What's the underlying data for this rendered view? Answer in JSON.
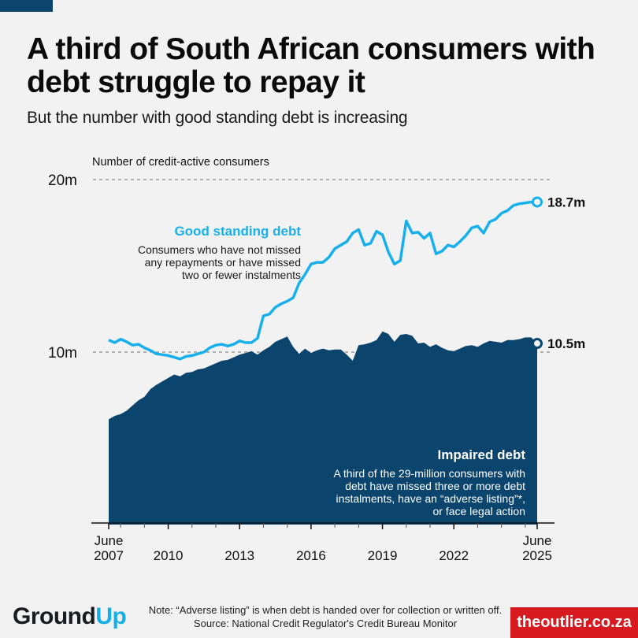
{
  "header": {
    "title": "A third of South African consumers with debt struggle to repay it",
    "subtitle": "But the number with good standing debt is increasing"
  },
  "footer": {
    "logo_part1": "Gr",
    "logo_part2": "ound",
    "logo_part3": "Up",
    "note": "Note: “Adverse listing” is when debt is handed over for collection or written off. Source: National Credit Regulator's Credit Bureau Monitor",
    "outlier_label": "theoutlier.co.za"
  },
  "colors": {
    "good_standing": "#17b0ec",
    "impaired": "#0b446d",
    "outlier_red": "#d71a1f",
    "gridline": "#8a8a8a"
  },
  "chart_data": {
    "type": "area",
    "ylabel": "Number of credit-active consumers",
    "ylim": [
      0,
      20
    ],
    "y_unit": "million",
    "yticks": [
      {
        "value": 10,
        "label": "10m"
      },
      {
        "value": 20,
        "label": "20m"
      }
    ],
    "grid": true,
    "xlim": [
      2007.5,
      2025.5
    ],
    "xticks": [
      {
        "value": 2007.5,
        "label_top": "June",
        "label": "2007"
      },
      {
        "value": 2010,
        "label_top": "",
        "label": "2010"
      },
      {
        "value": 2013,
        "label_top": "",
        "label": "2013"
      },
      {
        "value": 2016,
        "label_top": "",
        "label": "2016"
      },
      {
        "value": 2019,
        "label_top": "",
        "label": "2019"
      },
      {
        "value": 2022,
        "label_top": "",
        "label": "2022"
      },
      {
        "value": 2025.5,
        "label_top": "June",
        "label": "2025"
      }
    ],
    "minor_tick_years": [
      2008,
      2009,
      2011,
      2012,
      2014,
      2015,
      2017,
      2018,
      2020,
      2021,
      2023,
      2024,
      2025
    ],
    "x": [
      2007.5,
      2007.75,
      2008,
      2008.25,
      2008.5,
      2008.75,
      2009,
      2009.25,
      2009.5,
      2009.75,
      2010,
      2010.25,
      2010.5,
      2010.75,
      2011,
      2011.25,
      2011.5,
      2011.75,
      2012,
      2012.25,
      2012.5,
      2012.75,
      2013,
      2013.25,
      2013.5,
      2013.75,
      2014,
      2014.25,
      2014.5,
      2014.75,
      2015,
      2015.25,
      2015.5,
      2015.75,
      2016,
      2016.25,
      2016.5,
      2016.75,
      2017,
      2017.25,
      2017.5,
      2017.75,
      2018,
      2018.25,
      2018.5,
      2018.75,
      2019,
      2019.25,
      2019.5,
      2019.75,
      2020,
      2020.25,
      2020.5,
      2020.75,
      2021,
      2021.25,
      2021.5,
      2021.75,
      2022,
      2022.25,
      2022.5,
      2022.75,
      2023,
      2023.25,
      2023.5,
      2023.75,
      2024,
      2024.25,
      2024.5,
      2024.75,
      2025,
      2025.25,
      2025.5
    ],
    "series": [
      {
        "name": "Good standing debt",
        "description": "Consumers who have not missed any repayments or have missed two or fewer instalments",
        "kind": "line",
        "end_label": "18.7m",
        "values": [
          10.7,
          10.55,
          10.75,
          10.6,
          10.4,
          10.45,
          10.25,
          10.1,
          9.9,
          9.85,
          9.8,
          9.7,
          9.6,
          9.75,
          9.8,
          9.9,
          10.0,
          10.25,
          10.4,
          10.45,
          10.35,
          10.45,
          10.65,
          10.55,
          10.55,
          10.8,
          12.1,
          12.2,
          12.6,
          12.8,
          12.95,
          13.15,
          14.0,
          14.5,
          15.1,
          15.2,
          15.2,
          15.5,
          16.0,
          16.2,
          16.4,
          16.9,
          17.1,
          16.2,
          16.3,
          17.0,
          16.8,
          15.8,
          15.1,
          15.3,
          17.6,
          16.9,
          16.95,
          16.6,
          16.9,
          15.7,
          15.85,
          16.2,
          16.1,
          16.4,
          16.75,
          17.2,
          17.3,
          16.9,
          17.55,
          17.7,
          18.05,
          18.2,
          18.5,
          18.6,
          18.65,
          18.7,
          18.7
        ]
      },
      {
        "name": "Impaired debt",
        "description": "A third of the 29-million consumers with debt have missed three or more debt instalments, have an “adverse listing”*, or face legal action",
        "kind": "area",
        "end_label": "10.5m",
        "values": [
          6.1,
          6.3,
          6.4,
          6.6,
          6.9,
          7.2,
          7.4,
          7.85,
          8.1,
          8.3,
          8.5,
          8.7,
          8.6,
          8.8,
          8.85,
          9.0,
          9.05,
          9.2,
          9.35,
          9.5,
          9.55,
          9.7,
          9.85,
          9.95,
          10.05,
          9.85,
          10.1,
          10.3,
          10.6,
          10.75,
          10.9,
          10.3,
          9.9,
          10.2,
          9.95,
          10.1,
          10.2,
          10.1,
          10.15,
          10.15,
          9.85,
          9.5,
          10.4,
          10.45,
          10.55,
          10.7,
          11.2,
          11.05,
          10.6,
          11.0,
          11.05,
          10.95,
          10.5,
          10.55,
          10.3,
          10.45,
          10.25,
          10.1,
          10.05,
          10.2,
          10.35,
          10.4,
          10.3,
          10.5,
          10.65,
          10.6,
          10.55,
          10.7,
          10.7,
          10.75,
          10.85,
          10.85,
          10.5
        ]
      }
    ]
  }
}
